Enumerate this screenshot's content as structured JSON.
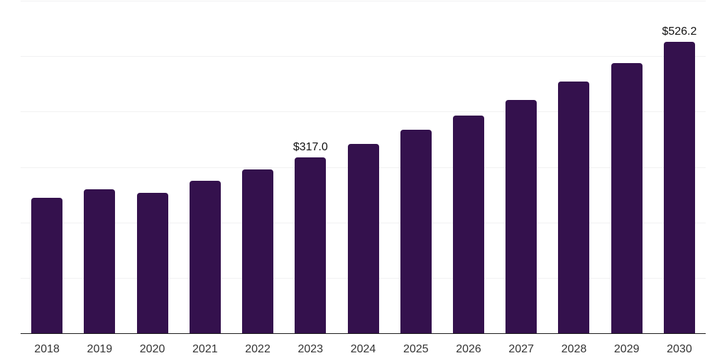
{
  "chart_data": {
    "type": "bar",
    "title": "",
    "categories": [
      "2018",
      "2019",
      "2020",
      "2021",
      "2022",
      "2023",
      "2024",
      "2025",
      "2026",
      "2027",
      "2028",
      "2029",
      "2030"
    ],
    "values": [
      244,
      260,
      253,
      275,
      295,
      317.0,
      341,
      367,
      393,
      421,
      454,
      488,
      526.2
    ],
    "bar_labels": [
      "",
      "",
      "",
      "",
      "",
      "$317.0",
      "",
      "",
      "",
      "",
      "",
      "",
      "$526.2"
    ],
    "xlabel": "",
    "ylabel": "",
    "ylim": [
      0,
      600
    ],
    "gridline_step": 100,
    "grid": "horizontal-only",
    "legend": "none",
    "colors": {
      "bar": "#34114D",
      "gridline": "#F1F1F2",
      "axis_line": "#1A1A1A",
      "value_label_text": "#111111",
      "tick_label_text": "#333333",
      "background": "#FFFFFF"
    }
  }
}
